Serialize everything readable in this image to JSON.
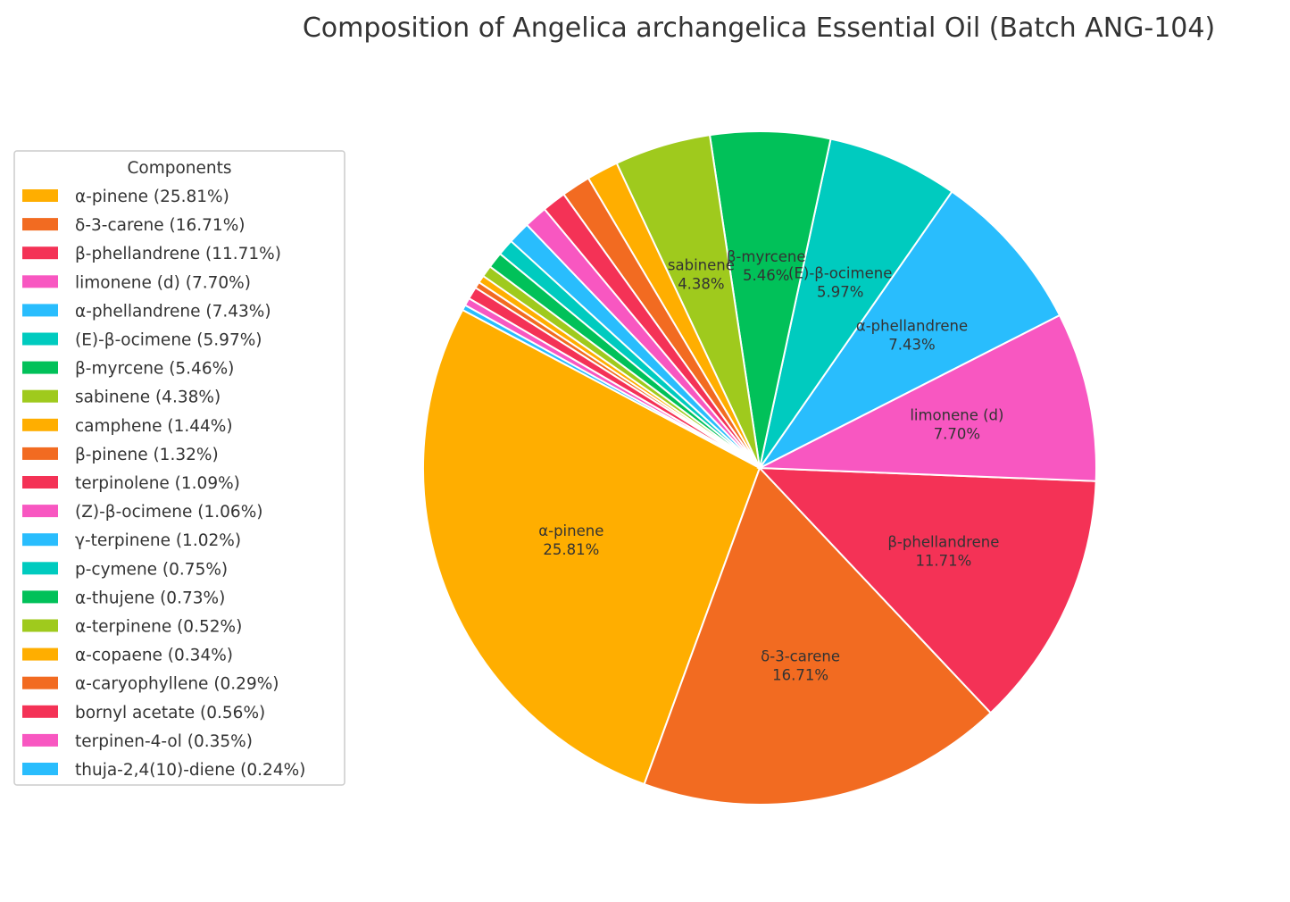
{
  "chart_data": {
    "type": "pie",
    "title": "Composition of Angelica archangelica Essential Oil (Batch ANG-104)",
    "legend_title": "Components",
    "legend_position": "left",
    "start_angle_deg": 152,
    "direction": "counterclockwise",
    "slices": [
      {
        "name": "α-pinene",
        "value": 25.81,
        "color": "#FFAE00",
        "legend": "α-pinene (25.81%)",
        "label_line1": "α-pinene",
        "label_line2": "25.81%"
      },
      {
        "name": "δ-3-carene",
        "value": 16.71,
        "color": "#F26B21",
        "legend": "δ-3-carene (16.71%)",
        "label_line1": "δ-3-carene",
        "label_line2": "16.71%"
      },
      {
        "name": "β-phellandrene",
        "value": 11.71,
        "color": "#F43256",
        "legend": "β-phellandrene (11.71%)",
        "label_line1": "β-phellandrene",
        "label_line2": "11.71%"
      },
      {
        "name": "limonene (d)",
        "value": 7.7,
        "color": "#F857C1",
        "legend": "limonene (d) (7.70%)",
        "label_line1": "limonene (d)",
        "label_line2": "7.70%"
      },
      {
        "name": "α-phellandrene",
        "value": 7.43,
        "color": "#29BDFD",
        "legend": "α-phellandrene (7.43%)",
        "label_line1": "α-phellandrene",
        "label_line2": "7.43%"
      },
      {
        "name": "(E)-β-ocimene",
        "value": 5.97,
        "color": "#00CBBF",
        "legend": "(E)-β-ocimene (5.97%)",
        "label_line1": "(E)-β-ocimene",
        "label_line2": "5.97%"
      },
      {
        "name": "β-myrcene",
        "value": 5.46,
        "color": "#01C159",
        "legend": "β-myrcene (5.46%)",
        "label_line1": "β-myrcene",
        "label_line2": "5.46%"
      },
      {
        "name": "sabinene",
        "value": 4.38,
        "color": "#9FCA1D",
        "legend": "sabinene (4.38%)",
        "label_line1": "sabinene",
        "label_line2": "4.38%"
      },
      {
        "name": "camphene",
        "value": 1.44,
        "color": "#FFAE00",
        "legend": "camphene (1.44%)"
      },
      {
        "name": "β-pinene",
        "value": 1.32,
        "color": "#F26B21",
        "legend": "β-pinene (1.32%)"
      },
      {
        "name": "terpinolene",
        "value": 1.09,
        "color": "#F43256",
        "legend": "terpinolene (1.09%)"
      },
      {
        "name": "(Z)-β-ocimene",
        "value": 1.06,
        "color": "#F857C1",
        "legend": "(Z)-β-ocimene (1.06%)"
      },
      {
        "name": "γ-terpinene",
        "value": 1.02,
        "color": "#29BDFD",
        "legend": "γ-terpinene (1.02%)"
      },
      {
        "name": "p-cymene",
        "value": 0.75,
        "color": "#00CBBF",
        "legend": "p-cymene (0.75%)"
      },
      {
        "name": "α-thujene",
        "value": 0.73,
        "color": "#01C159",
        "legend": "α-thujene (0.73%)"
      },
      {
        "name": "α-terpinene",
        "value": 0.52,
        "color": "#9FCA1D",
        "legend": "α-terpinene (0.52%)"
      },
      {
        "name": "α-copaene",
        "value": 0.34,
        "color": "#FFAE00",
        "legend": "α-copaene (0.34%)"
      },
      {
        "name": "α-caryophyllene",
        "value": 0.29,
        "color": "#F26B21",
        "legend": "α-caryophyllene (0.29%)"
      },
      {
        "name": "bornyl acetate",
        "value": 0.56,
        "color": "#F43256",
        "legend": "bornyl acetate (0.56%)"
      },
      {
        "name": "terpinen-4-ol",
        "value": 0.35,
        "color": "#F857C1",
        "legend": "terpinen-4-ol (0.35%)"
      },
      {
        "name": "thuja-2,4(10)-diene",
        "value": 0.24,
        "color": "#29BDFD",
        "legend": "thuja-2,4(10)-diene (0.24%)"
      }
    ]
  }
}
